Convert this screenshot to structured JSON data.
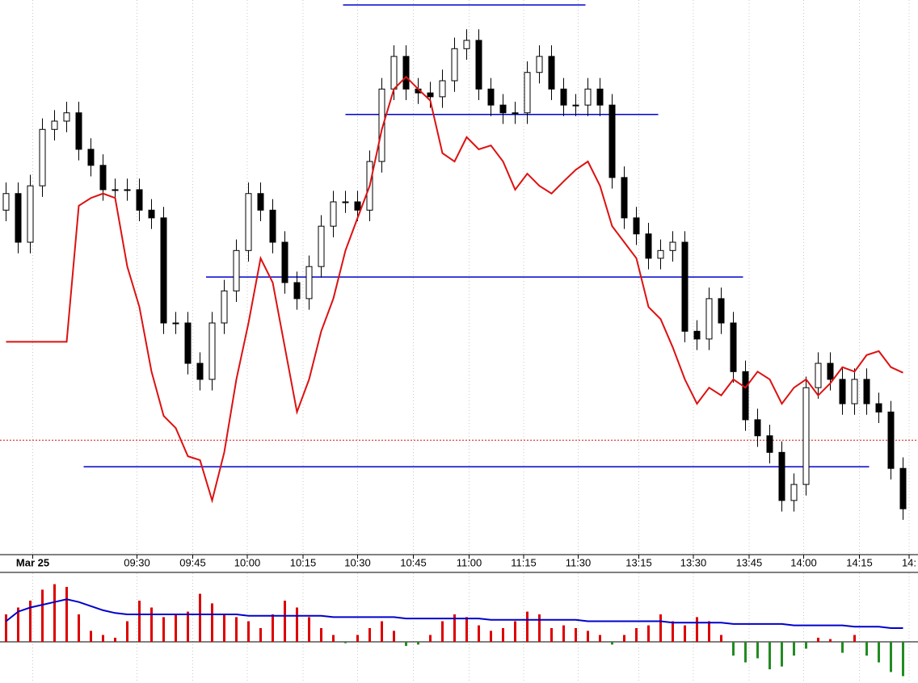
{
  "chart_data": {
    "type": "candlestick",
    "xlim": [
      -0.5,
      74.5
    ],
    "xticks": [
      {
        "value": 2.2,
        "label": "Mar 25"
      },
      {
        "value": 10.8,
        "label": "09:30"
      },
      {
        "value": 15.4,
        "label": "09:45"
      },
      {
        "value": 19.9,
        "label": "10:00"
      },
      {
        "value": 24.5,
        "label": "10:15"
      },
      {
        "value": 29.0,
        "label": "10:30"
      },
      {
        "value": 33.6,
        "label": "10:45"
      },
      {
        "value": 38.2,
        "label": "11:00"
      },
      {
        "value": 42.7,
        "label": "11:15"
      },
      {
        "value": 47.2,
        "label": "11:30"
      },
      {
        "value": 52.2,
        "label": "13:15"
      },
      {
        "value": 56.7,
        "label": "13:30"
      },
      {
        "value": 61.3,
        "label": "13:45"
      },
      {
        "value": 65.8,
        "label": "14:00"
      },
      {
        "value": 70.4,
        "label": "14:15"
      },
      {
        "value": 74.5,
        "label": "14:"
      }
    ],
    "grid": true,
    "ylim": [
      0,
      100
    ],
    "up_color": "#ffffff",
    "down_color": "#000000",
    "open": [
      62.0,
      65.0,
      56.2,
      66.4,
      76.6,
      78.1,
      79.6,
      73.0,
      70.1,
      65.7,
      65.7,
      65.7,
      62.0,
      60.6,
      41.6,
      41.6,
      34.3,
      31.4,
      41.6,
      47.4,
      54.7,
      65.0,
      62.0,
      56.2,
      48.9,
      46.0,
      51.8,
      59.1,
      63.5,
      63.5,
      62.0,
      70.8,
      83.9,
      89.8,
      83.9,
      83.2,
      82.5,
      85.4,
      91.2,
      92.7,
      83.9,
      81.0,
      79.6,
      79.6,
      86.9,
      89.8,
      83.9,
      81.0,
      81.0,
      83.9,
      81.0,
      67.9,
      60.6,
      57.7,
      53.3,
      54.7,
      56.2,
      40.1,
      38.7,
      46.0,
      41.6,
      32.8,
      24.1,
      21.2,
      18.2,
      9.5,
      12.4,
      29.9,
      34.3,
      31.4,
      27.0,
      31.4,
      27.0,
      25.5,
      15.3
    ],
    "high": [
      67.0,
      67.0,
      68.4,
      78.6,
      80.1,
      81.6,
      81.6,
      75.0,
      72.1,
      67.7,
      67.7,
      67.7,
      64.0,
      62.6,
      43.6,
      43.6,
      36.3,
      43.6,
      49.4,
      56.7,
      67.0,
      67.0,
      64.0,
      58.2,
      50.9,
      53.8,
      61.1,
      65.5,
      65.5,
      65.5,
      72.8,
      85.9,
      91.8,
      91.8,
      85.9,
      85.2,
      87.4,
      93.2,
      94.7,
      94.7,
      85.9,
      83.0,
      81.6,
      88.9,
      91.8,
      91.8,
      85.9,
      83.0,
      85.9,
      85.9,
      83.0,
      69.9,
      62.6,
      59.7,
      56.7,
      58.2,
      58.2,
      42.1,
      48.0,
      48.0,
      43.6,
      34.8,
      26.1,
      23.2,
      20.2,
      14.4,
      31.9,
      36.3,
      36.3,
      33.4,
      33.4,
      33.4,
      29.0,
      27.5,
      17.3
    ],
    "low": [
      60.0,
      54.2,
      54.2,
      64.4,
      74.6,
      76.1,
      71.0,
      68.1,
      63.7,
      63.7,
      63.7,
      60.0,
      58.6,
      39.6,
      39.6,
      32.3,
      29.4,
      29.4,
      39.6,
      45.4,
      52.7,
      60.0,
      54.2,
      46.9,
      44.0,
      44.0,
      49.8,
      57.1,
      61.5,
      60.0,
      60.0,
      68.8,
      81.9,
      81.9,
      81.2,
      80.5,
      80.5,
      83.4,
      89.2,
      81.9,
      79.0,
      77.6,
      77.6,
      77.6,
      84.9,
      81.9,
      79.0,
      79.0,
      79.0,
      79.0,
      65.9,
      58.6,
      55.7,
      51.3,
      51.3,
      52.7,
      38.1,
      36.7,
      36.7,
      39.6,
      30.8,
      22.1,
      19.2,
      16.2,
      7.5,
      7.5,
      10.4,
      27.9,
      29.4,
      25.0,
      25.0,
      25.0,
      23.5,
      13.3,
      6.0
    ],
    "close": [
      65.0,
      56.2,
      66.4,
      76.6,
      78.1,
      79.6,
      73.0,
      70.1,
      65.7,
      65.7,
      65.7,
      62.0,
      60.6,
      41.6,
      41.6,
      34.3,
      31.4,
      41.6,
      47.4,
      54.7,
      65.0,
      62.0,
      56.2,
      48.9,
      46.0,
      51.8,
      59.1,
      63.5,
      63.5,
      62.0,
      70.8,
      83.9,
      89.8,
      83.9,
      83.2,
      82.5,
      85.4,
      91.2,
      92.7,
      83.9,
      81.0,
      79.6,
      79.6,
      86.9,
      89.8,
      83.9,
      81.0,
      81.0,
      83.9,
      81.0,
      67.9,
      60.6,
      57.7,
      53.3,
      54.7,
      56.2,
      40.1,
      38.7,
      46.0,
      41.6,
      32.8,
      24.1,
      21.2,
      18.2,
      9.5,
      12.4,
      29.9,
      34.3,
      31.4,
      27.0,
      31.4,
      27.0,
      25.5,
      15.3,
      8.0
    ],
    "overlay": {
      "color": "#dd1111",
      "values": [
        38.2,
        38.2,
        38.2,
        38.2,
        38.2,
        38.2,
        62.8,
        64.2,
        65.0,
        64.2,
        51.8,
        44.5,
        32.8,
        24.8,
        22.6,
        17.5,
        16.8,
        9.5,
        18.2,
        31.4,
        41.6,
        53.3,
        48.9,
        37.2,
        25.5,
        31.4,
        40.1,
        46.0,
        54.7,
        60.6,
        66.4,
        76.6,
        83.9,
        86.1,
        83.9,
        81.8,
        72.3,
        70.8,
        75.2,
        73.0,
        73.7,
        70.8,
        65.7,
        68.6,
        66.4,
        65.0,
        67.2,
        69.3,
        70.8,
        66.4,
        59.1,
        56.2,
        53.3,
        44.5,
        42.3,
        37.2,
        31.4,
        27.0,
        29.9,
        28.5,
        31.4,
        29.9,
        32.8,
        31.4,
        27.0,
        29.9,
        31.4,
        28.5,
        30.7,
        33.6,
        32.8,
        35.8,
        36.5,
        33.6,
        32.6
      ]
    },
    "levels": [
      {
        "value": 99.1,
        "x": [
          27.8,
          47.8
        ],
        "color": "#0000cc"
      },
      {
        "value": 79.3,
        "x": [
          28.0,
          53.8
        ],
        "color": "#0000cc"
      },
      {
        "value": 49.9,
        "x": [
          16.5,
          60.8
        ],
        "color": "#0000cc"
      },
      {
        "value": 15.6,
        "x": [
          6.4,
          71.2
        ],
        "color": "#0000cc"
      }
    ],
    "ref_level": {
      "value": 20.4,
      "color": "#dd1111"
    },
    "volume": {
      "ylim": [
        -30,
        50
      ],
      "up_color": "#dd0000",
      "down_color": "#228b22",
      "values": [
        20,
        25,
        30,
        38,
        42,
        40,
        20,
        8,
        5,
        3,
        15,
        30,
        25,
        18,
        20,
        22,
        35,
        28,
        20,
        18,
        15,
        10,
        20,
        30,
        25,
        18,
        10,
        5,
        -1,
        5,
        10,
        15,
        8,
        -3,
        -2,
        5,
        15,
        20,
        18,
        12,
        8,
        10,
        15,
        22,
        20,
        10,
        12,
        10,
        8,
        5,
        -2,
        5,
        10,
        12,
        20,
        15,
        12,
        18,
        15,
        5,
        -10,
        -15,
        -12,
        -20,
        -18,
        -10,
        -5,
        3,
        2,
        -8,
        5,
        -10,
        -15,
        -22,
        -25
      ],
      "ma_color": "#0000cc",
      "ma_values": [
        15,
        22,
        25,
        27,
        29,
        31,
        29,
        26,
        23,
        21,
        20,
        20,
        20,
        20,
        20,
        20,
        20,
        20,
        20,
        20,
        19,
        19,
        19,
        19,
        19,
        19,
        19,
        18,
        18,
        18,
        18,
        18,
        18,
        17,
        17,
        17,
        17,
        17,
        17,
        17,
        16,
        16,
        16,
        16,
        16,
        16,
        16,
        16,
        15,
        15,
        15,
        15,
        15,
        15,
        15,
        14,
        14,
        14,
        14,
        14,
        13,
        13,
        13,
        13,
        13,
        12,
        12,
        12,
        12,
        12,
        11,
        11,
        11,
        10,
        10
      ]
    }
  }
}
